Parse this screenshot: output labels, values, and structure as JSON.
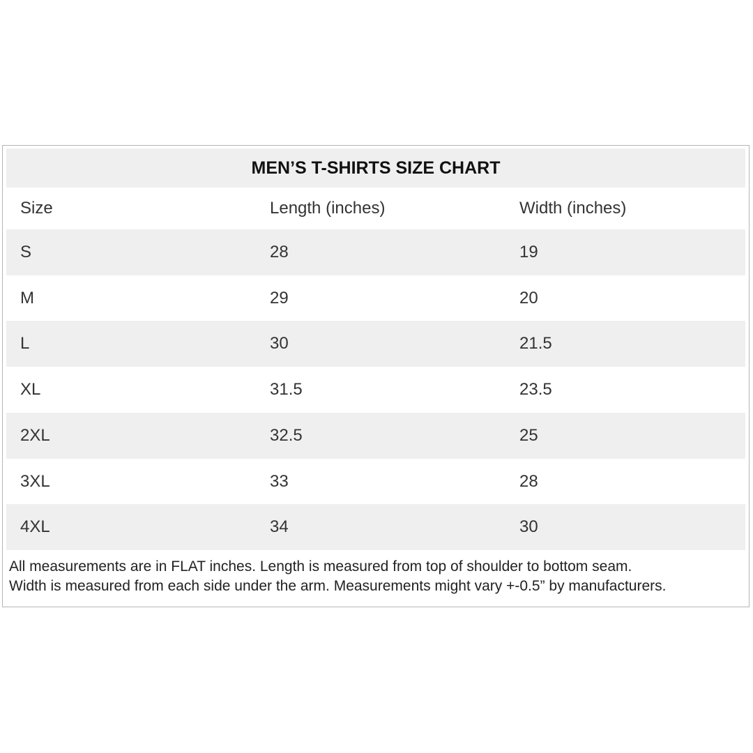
{
  "title": "MEN’S T-SHIRTS SIZE CHART",
  "columns": [
    "Size",
    "Length (inches)",
    "Width (inches)"
  ],
  "rows": [
    [
      "S",
      "28",
      "19"
    ],
    [
      "M",
      "29",
      "20"
    ],
    [
      "L",
      "30",
      "21.5"
    ],
    [
      "XL",
      "31.5",
      "23.5"
    ],
    [
      "2XL",
      "32.5",
      "25"
    ],
    [
      "3XL",
      "33",
      "28"
    ],
    [
      "4XL",
      "34",
      "30"
    ]
  ],
  "notes": [
    "All measurements are in FLAT inches. Length is measured from top of shoulder to bottom seam.",
    "Width is measured from each side under the arm. Measurements might vary +-0.5” by manufacturers."
  ]
}
